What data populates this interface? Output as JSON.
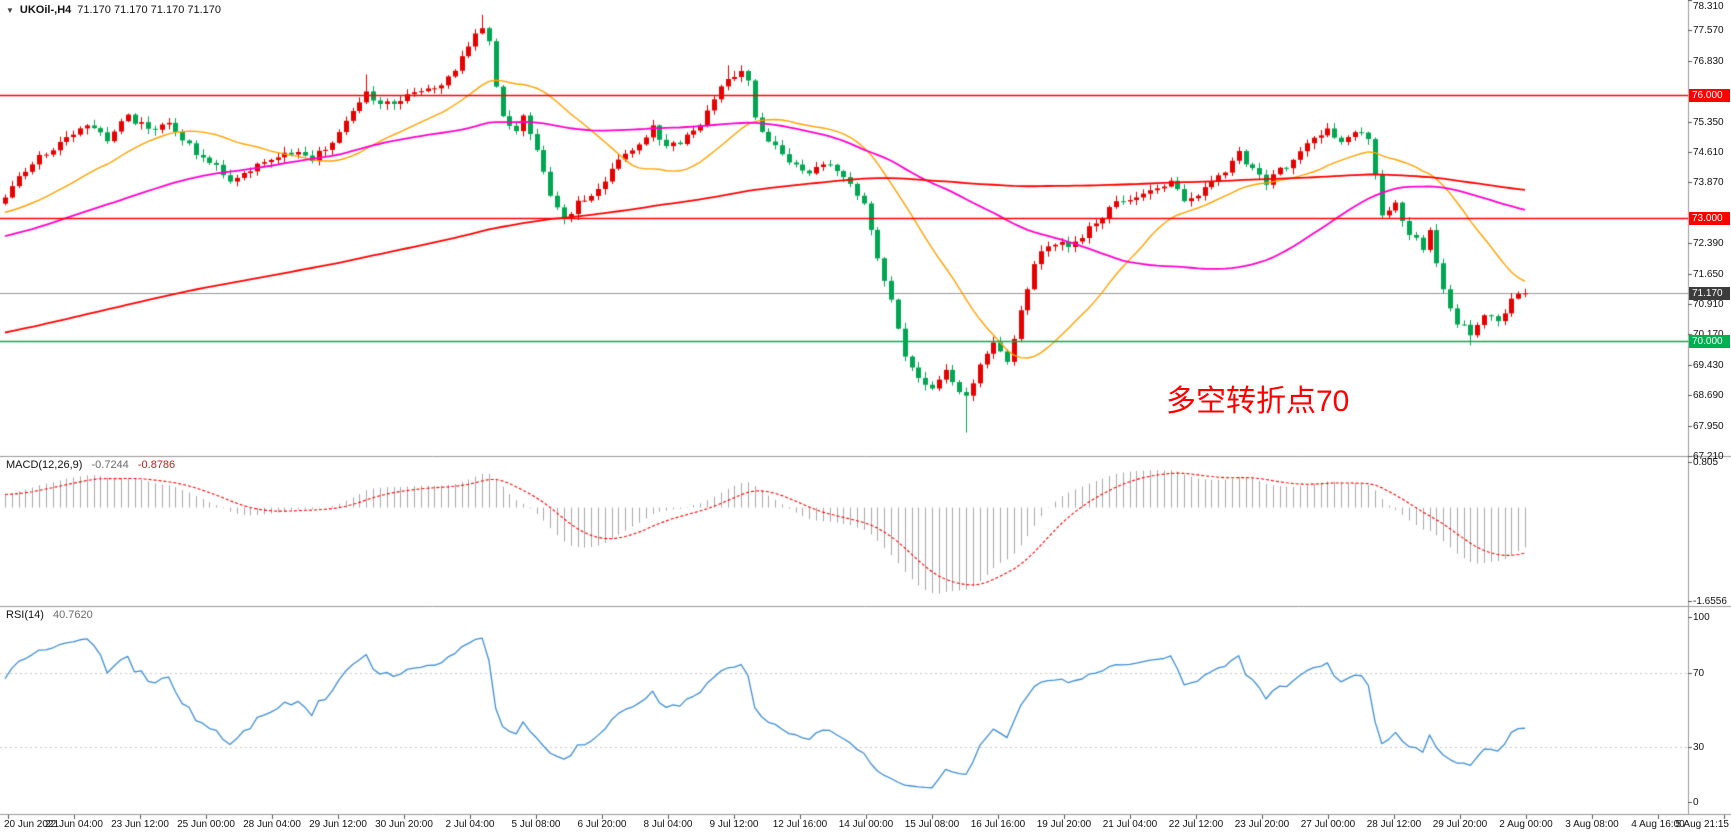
{
  "symbol_bar": {
    "collapse_icon": "▼",
    "title": "UKOil-,H4",
    "ohlc": "71.170 71.170 71.170 71.170"
  },
  "annotation": {
    "text": "多空转折点70",
    "color": "#ff0000"
  },
  "macd_label": {
    "name": "MACD(12,26,9)",
    "value_main": "-0.7244",
    "value_signal": "-0.8786"
  },
  "rsi_label": {
    "name": "RSI(14)",
    "value": "40.7620"
  },
  "colors": {
    "bull": "#e60000",
    "bear": "#00a651",
    "ma_fast": "#ffa200",
    "ma_mid": "#ff00cc",
    "ma_slow": "#ff0000",
    "macd_hist": "#a8a8a8",
    "macd_signal": "#ff0000",
    "rsi_line": "#3f8fd4",
    "price_line": "#9a9a9a",
    "separator": "#9a9a9a",
    "axis_text": "#111111"
  },
  "chart_data": [
    {
      "type": "candlestick",
      "title": "UKOil-,H4",
      "timeframe": "H4",
      "ylim": [
        67.21,
        78.31
      ],
      "seed": 20210805,
      "ma_periods": [
        21,
        55,
        200
      ],
      "y_ticks": [
        78.31,
        77.57,
        76.83,
        75.35,
        74.61,
        73.87,
        72.39,
        71.65,
        70.91,
        70.17,
        69.43,
        68.69,
        67.95,
        67.21
      ],
      "x_ticks": [
        "20 Jun 2021",
        "22 Jun 04:00",
        "23 Jun 12:00",
        "25 Jun 00:00",
        "28 Jun 04:00",
        "29 Jun 12:00",
        "30 Jun 20:00",
        "2 Jul 04:00",
        "5 Jul 08:00",
        "6 Jul 20:00",
        "8 Jul 04:00",
        "9 Jul 12:00",
        "12 Jul 16:00",
        "14 Jul 00:00",
        "15 Jul 08:00",
        "16 Jul 16:00",
        "19 Jul 20:00",
        "21 Jul 04:00",
        "22 Jul 12:00",
        "23 Jul 20:00",
        "27 Jul 00:00",
        "28 Jul 12:00",
        "29 Jul 20:00",
        "2 Aug 00:00",
        "3 Aug 08:00",
        "4 Aug 16:00",
        "5 Aug 21:15"
      ],
      "price_lines": [
        {
          "value": 76.0,
          "label": "76.000",
          "line_color": "#ff0000",
          "box_color": "#ff0000",
          "text_color": "#ffffff",
          "style": "level"
        },
        {
          "value": 73.0,
          "label": "73.000",
          "line_color": "#ff0000",
          "box_color": "#ff0000",
          "text_color": "#ffffff",
          "style": "level"
        },
        {
          "value": 70.0,
          "label": "70.000",
          "line_color": "#00b050",
          "box_color": "#00b050",
          "text_color": "#ffffff",
          "style": "level"
        },
        {
          "value": 71.17,
          "label": "71.170",
          "line_color": "#9a9a9a",
          "box_color": "#3c3c3c",
          "text_color": "#ffffff",
          "style": "current"
        }
      ],
      "price_path": [
        [
          0,
          73.5
        ],
        [
          3,
          74.2
        ],
        [
          6,
          74.6
        ],
        [
          9,
          74.9
        ],
        [
          12,
          75.25
        ],
        [
          15,
          74.95
        ],
        [
          18,
          75.45
        ],
        [
          21,
          75.15
        ],
        [
          24,
          75.3
        ],
        [
          27,
          74.75
        ],
        [
          30,
          74.35
        ],
        [
          33,
          73.95
        ],
        [
          36,
          74.15
        ],
        [
          39,
          74.45
        ],
        [
          42,
          74.6
        ],
        [
          45,
          74.45
        ],
        [
          48,
          74.9
        ],
        [
          51,
          75.6
        ],
        [
          53,
          76.0
        ],
        [
          55,
          75.75
        ],
        [
          58,
          75.9
        ],
        [
          61,
          76.1
        ],
        [
          64,
          76.2
        ],
        [
          66,
          76.55
        ],
        [
          68,
          77.25
        ],
        [
          70,
          77.6
        ],
        [
          71,
          77.35
        ],
        [
          72,
          76.2
        ],
        [
          73,
          75.4
        ],
        [
          75,
          75.15
        ],
        [
          76,
          75.45
        ],
        [
          78,
          74.7
        ],
        [
          80,
          73.6
        ],
        [
          82,
          72.95
        ],
        [
          84,
          73.35
        ],
        [
          87,
          73.65
        ],
        [
          90,
          74.35
        ],
        [
          93,
          74.85
        ],
        [
          95,
          75.2
        ],
        [
          97,
          74.75
        ],
        [
          100,
          74.95
        ],
        [
          102,
          75.3
        ],
        [
          104,
          75.9
        ],
        [
          106,
          76.35
        ],
        [
          108,
          76.5
        ],
        [
          109,
          76.3
        ],
        [
          110,
          75.4
        ],
        [
          112,
          74.95
        ],
        [
          115,
          74.35
        ],
        [
          118,
          74.05
        ],
        [
          120,
          74.35
        ],
        [
          122,
          74.1
        ],
        [
          124,
          73.85
        ],
        [
          126,
          73.4
        ],
        [
          128,
          72.1
        ],
        [
          130,
          71.0
        ],
        [
          132,
          69.7
        ],
        [
          134,
          69.05
        ],
        [
          136,
          68.8
        ],
        [
          138,
          69.25
        ],
        [
          140,
          68.85
        ],
        [
          141,
          68.6
        ],
        [
          143,
          69.35
        ],
        [
          145,
          69.9
        ],
        [
          147,
          69.55
        ],
        [
          149,
          70.7
        ],
        [
          151,
          71.9
        ],
        [
          153,
          72.4
        ],
        [
          156,
          72.3
        ],
        [
          159,
          72.75
        ],
        [
          162,
          73.25
        ],
        [
          165,
          73.5
        ],
        [
          168,
          73.7
        ],
        [
          171,
          73.85
        ],
        [
          173,
          73.45
        ],
        [
          175,
          73.6
        ],
        [
          178,
          74.0
        ],
        [
          181,
          74.55
        ],
        [
          183,
          74.15
        ],
        [
          185,
          73.9
        ],
        [
          188,
          74.3
        ],
        [
          191,
          74.85
        ],
        [
          194,
          75.1
        ],
        [
          196,
          74.9
        ],
        [
          198,
          75.15
        ],
        [
          200,
          74.85
        ],
        [
          202,
          73.15
        ],
        [
          204,
          73.35
        ],
        [
          206,
          72.65
        ],
        [
          208,
          72.3
        ],
        [
          209,
          72.7
        ],
        [
          211,
          71.25
        ],
        [
          213,
          70.45
        ],
        [
          215,
          70.2
        ],
        [
          217,
          70.7
        ],
        [
          219,
          70.45
        ],
        [
          221,
          71.0
        ],
        [
          223,
          71.17
        ]
      ],
      "wick_specials": [
        {
          "i": 53,
          "high": 76.5
        },
        {
          "i": 70,
          "high": 77.95
        },
        {
          "i": 106,
          "high": 76.72
        },
        {
          "i": 141,
          "low": 67.78
        },
        {
          "i": 215,
          "low": 69.9
        }
      ],
      "annotation": {
        "text": "多空转折点70",
        "color": "#ff0000"
      },
      "legend_position": "none",
      "grid": false
    },
    {
      "type": "bar",
      "name": "MACD",
      "label": "MACD(12,26,9)",
      "params": {
        "fast": 12,
        "slow": 26,
        "signal": 9
      },
      "current_values": [
        -0.7244,
        -0.8786
      ],
      "ylim": [
        0.9,
        -1.75
      ],
      "y_ticks": [
        {
          "label": "0.805",
          "value": 0.805
        },
        {
          "label": "-1.6556",
          "value": -1.6556
        }
      ]
    },
    {
      "type": "line",
      "name": "RSI",
      "label": "RSI(14)",
      "period": 14,
      "current_value": 40.762,
      "ylim": [
        0,
        100
      ],
      "levels": [
        70,
        30
      ],
      "y_ticks": [
        100,
        70,
        30,
        0
      ]
    }
  ]
}
